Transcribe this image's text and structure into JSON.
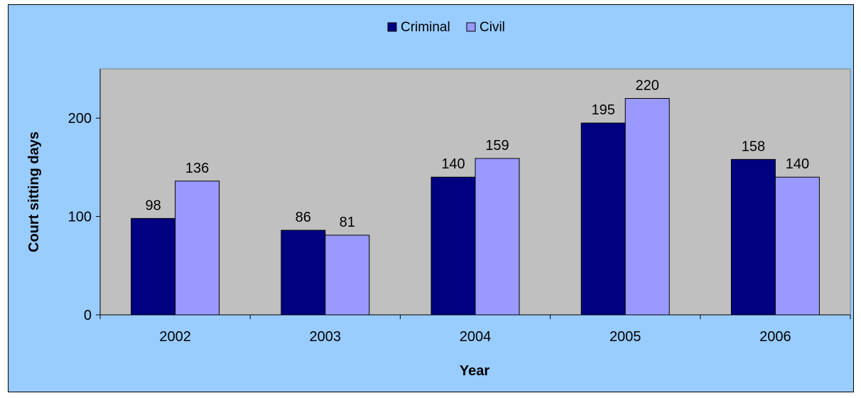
{
  "chart_data": {
    "type": "bar",
    "title": "",
    "xlabel": "Year",
    "ylabel": "Court sitting days",
    "categories": [
      "2002",
      "2003",
      "2004",
      "2005",
      "2006"
    ],
    "series": [
      {
        "name": "Criminal",
        "values": [
          98,
          86,
          140,
          195,
          158
        ],
        "color": "#000080"
      },
      {
        "name": "Civil",
        "values": [
          136,
          81,
          159,
          220,
          140
        ],
        "color": "#9999ff"
      }
    ],
    "ylim": [
      0,
      250
    ],
    "yticks": [
      0,
      100,
      200
    ],
    "data_labels": true,
    "legend_position": "top",
    "grid": false,
    "plot_background": "#c0c0c0",
    "chart_background": "#99ccff"
  }
}
